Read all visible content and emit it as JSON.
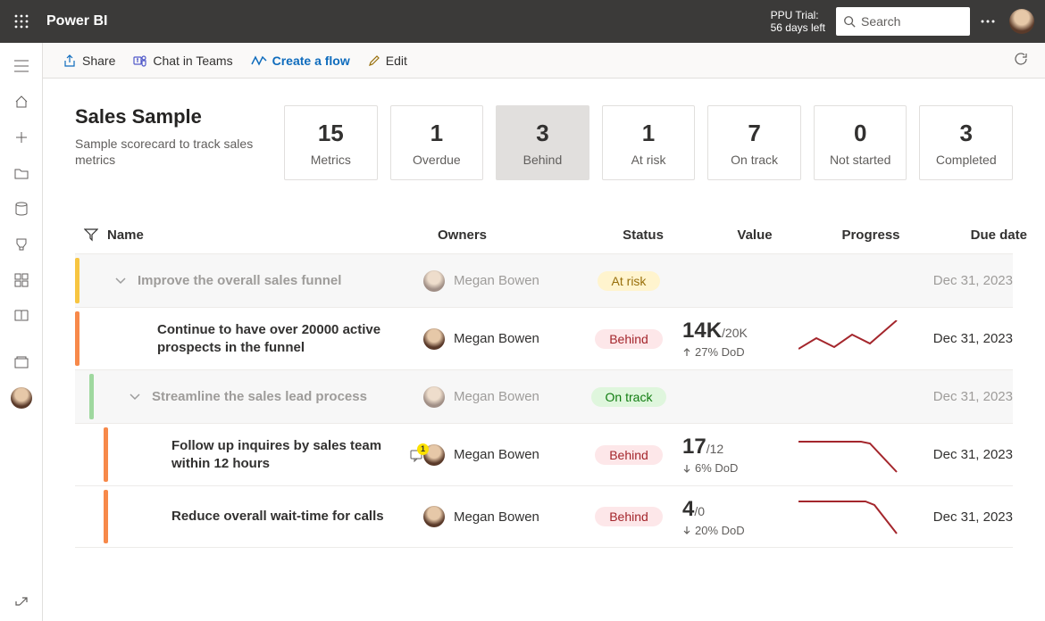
{
  "header": {
    "product": "Power BI",
    "trial_line1": "PPU Trial:",
    "trial_line2": "56 days left",
    "search_placeholder": "Search"
  },
  "cmdbar": {
    "share": "Share",
    "chat": "Chat in Teams",
    "flow": "Create a flow",
    "edit": "Edit"
  },
  "page": {
    "title": "Sales Sample",
    "subtitle": "Sample scorecard to track sales metrics"
  },
  "cards": [
    {
      "value": "15",
      "label": "Metrics",
      "selected": false
    },
    {
      "value": "1",
      "label": "Overdue",
      "selected": false
    },
    {
      "value": "3",
      "label": "Behind",
      "selected": true
    },
    {
      "value": "1",
      "label": "At risk",
      "selected": false
    },
    {
      "value": "7",
      "label": "On track",
      "selected": false
    },
    {
      "value": "0",
      "label": "Not started",
      "selected": false
    },
    {
      "value": "3",
      "label": "Completed",
      "selected": false
    }
  ],
  "columns": {
    "name": "Name",
    "owners": "Owners",
    "status": "Status",
    "value": "Value",
    "progress": "Progress",
    "due": "Due date"
  },
  "colors": {
    "stripe_atrisk": "#f7c541",
    "stripe_behind": "#f7894a",
    "stripe_ontrack": "#9fd89f",
    "spark_up": "#a4262c",
    "spark_down": "#a4262c"
  },
  "rows": [
    {
      "type": "parent",
      "lvl": 1,
      "name": "Improve the overall sales funnel",
      "owner": "Megan Bowen",
      "owner_dim": true,
      "status": "At risk",
      "status_class": "atrisk",
      "stripe_color": "#f7c541",
      "due": "Dec 31, 2023"
    },
    {
      "type": "child",
      "lvl": 1,
      "name": "Continue to have over 20000 active prospects in the funnel",
      "owner": "Megan Bowen",
      "status": "Behind",
      "status_class": "behind",
      "stripe_color": "#f7894a",
      "value_main": "14K",
      "value_sub": "/20K",
      "delta_arrow": "up",
      "delta_text": "27% DoD",
      "spark": [
        [
          0,
          32
        ],
        [
          20,
          20
        ],
        [
          40,
          30
        ],
        [
          60,
          16
        ],
        [
          80,
          26
        ],
        [
          110,
          0
        ]
      ],
      "spark_color": "#a4262c",
      "due": "Dec 31, 2023"
    },
    {
      "type": "parent",
      "lvl": 2,
      "name": "Streamline the sales lead process",
      "owner": "Megan Bowen",
      "owner_dim": true,
      "status": "On track",
      "status_class": "ontrack",
      "stripe_color": "#9fd89f",
      "due": "Dec 31, 2023"
    },
    {
      "type": "child",
      "lvl": 2,
      "name": "Follow up inquires by sales team within 12 hours",
      "owner": "Megan Bowen",
      "note_count": "1",
      "status": "Behind",
      "status_class": "behind",
      "stripe_color": "#f7894a",
      "value_main": "17",
      "value_sub": "/12",
      "delta_arrow": "down",
      "delta_text": "6% DoD",
      "spark": [
        [
          0,
          6
        ],
        [
          40,
          6
        ],
        [
          70,
          6
        ],
        [
          80,
          8
        ],
        [
          110,
          40
        ]
      ],
      "spark_color": "#a4262c",
      "due": "Dec 31, 2023"
    },
    {
      "type": "child",
      "lvl": 2,
      "name": "Reduce overall wait-time for calls",
      "owner": "Megan Bowen",
      "status": "Behind",
      "status_class": "behind",
      "stripe_color": "#f7894a",
      "value_main": "4",
      "value_sub": "/0",
      "delta_arrow": "down",
      "delta_text": "20% DoD",
      "spark": [
        [
          0,
          4
        ],
        [
          50,
          4
        ],
        [
          75,
          4
        ],
        [
          85,
          8
        ],
        [
          110,
          40
        ]
      ],
      "spark_color": "#a4262c",
      "due": "Dec 31, 2023"
    }
  ]
}
